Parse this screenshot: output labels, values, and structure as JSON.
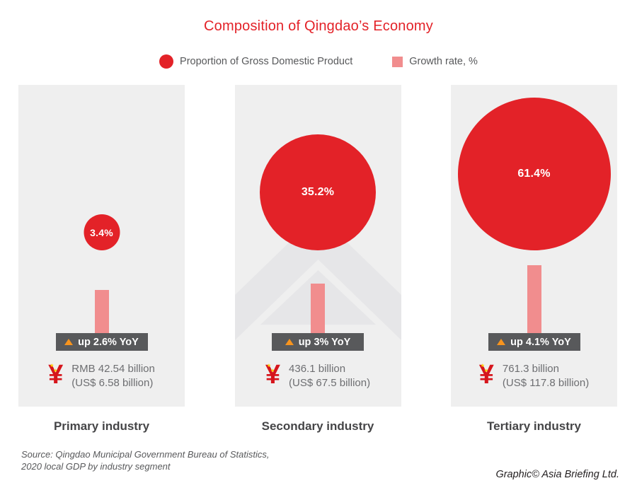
{
  "title": "Composition of Qingdao’s Economy",
  "legend": {
    "gdp": {
      "label": "Proportion of Gross Domestic Product",
      "color": "#e32228"
    },
    "growth": {
      "label": "Growth rate, %",
      "color": "#f18d8e"
    }
  },
  "chart_data": {
    "type": "bar",
    "title": "Composition of Qingdao’s Economy",
    "categories": [
      "Primary industry",
      "Secondary industry",
      "Tertiary industry"
    ],
    "series": [
      {
        "name": "Proportion of Gross Domestic Product",
        "unit": "%",
        "values": [
          3.4,
          35.2,
          61.4
        ],
        "marker": "area-proportional-circle",
        "color": "#e32228"
      },
      {
        "name": "Growth rate, %",
        "unit": "% YoY",
        "values": [
          2.6,
          3.0,
          4.1
        ],
        "marker": "bar",
        "color": "#f18d8e"
      }
    ],
    "value_rmb_billion": [
      42.54,
      436.1,
      761.3
    ],
    "value_usd_billion": [
      6.58,
      67.5,
      117.8
    ],
    "legend_position": "top",
    "grid": false
  },
  "panels": [
    {
      "industry": "Primary industry",
      "gdp_share_pct": "3.4%",
      "growth_badge": "up 2.6% YoY",
      "value_rmb": "RMB 42.54 billion",
      "value_usd": "(US$ 6.58 billion)"
    },
    {
      "industry": "Secondary industry",
      "gdp_share_pct": "35.2%",
      "growth_badge": "up 3% YoY",
      "value_rmb": "436.1 billion",
      "value_usd": "(US$ 67.5 billion)"
    },
    {
      "industry": "Tertiary industry",
      "gdp_share_pct": "61.4%",
      "growth_badge": "up 4.1% YoY",
      "value_rmb": "761.3 billion",
      "value_usd": "(US$ 117.8 billion)"
    }
  ],
  "footer": {
    "source_line1": "Source: Qingdao Municipal Government Bureau of Statistics,",
    "source_line2": "2020 local GDP by industry segment",
    "credit": "Graphic© Asia Briefing Ltd."
  },
  "icons": {
    "yuan": "¥",
    "star": "★"
  }
}
